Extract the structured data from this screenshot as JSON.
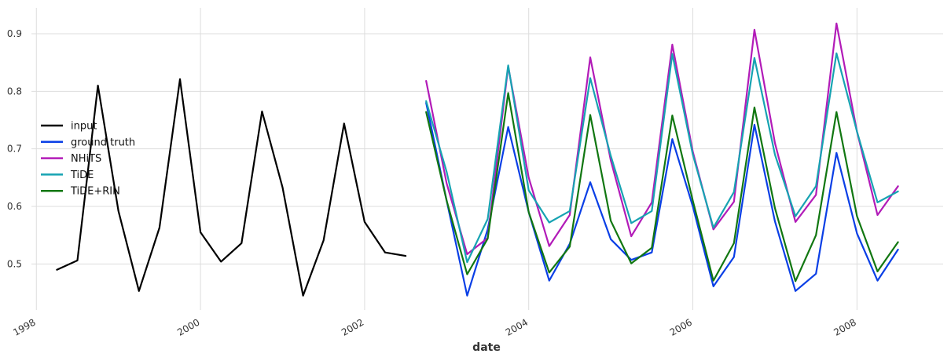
{
  "chart_data": {
    "type": "line",
    "xlabel": "date",
    "ylabel": "",
    "xlim": [
      1997.94,
      2009.05
    ],
    "ylim": [
      0.42,
      0.945
    ],
    "grid": true,
    "legend_placement": "center-left",
    "x_ticks": [
      {
        "value": 1998,
        "label": "1998"
      },
      {
        "value": 2000,
        "label": "2000"
      },
      {
        "value": 2002,
        "label": "2002"
      },
      {
        "value": 2004,
        "label": "2004"
      },
      {
        "value": 2006,
        "label": "2006"
      },
      {
        "value": 2008,
        "label": "2008"
      }
    ],
    "y_ticks": [
      {
        "value": 0.5,
        "label": "0.5"
      },
      {
        "value": 0.6,
        "label": "0.6"
      },
      {
        "value": 0.7,
        "label": "0.7"
      },
      {
        "value": 0.8,
        "label": "0.8"
      },
      {
        "value": 0.9,
        "label": "0.9"
      }
    ],
    "series": [
      {
        "name": "input",
        "color": "#000000",
        "x": [
          1998.25,
          1998.5,
          1998.75,
          1999.0,
          1999.25,
          1999.5,
          1999.75,
          2000.0,
          2000.25,
          2000.5,
          2000.75,
          2001.0,
          2001.25,
          2001.5,
          2001.75,
          2002.0,
          2002.25,
          2002.5
        ],
        "y": [
          0.49,
          0.506,
          0.81,
          0.592,
          0.453,
          0.563,
          0.821,
          0.555,
          0.504,
          0.536,
          0.765,
          0.633,
          0.445,
          0.541,
          0.744,
          0.573,
          0.52,
          0.514
        ]
      },
      {
        "name": "ground truth",
        "color": "#0a3fe6",
        "x": [
          2002.75,
          2003.0,
          2003.25,
          2003.5,
          2003.75,
          2004.0,
          2004.25,
          2004.5,
          2004.75,
          2005.0,
          2005.25,
          2005.5,
          2005.75,
          2006.0,
          2006.25,
          2006.5,
          2006.75,
          2007.0,
          2007.25,
          2007.5,
          2007.75,
          2008.0,
          2008.25,
          2008.5
        ],
        "y": [
          0.78,
          0.61,
          0.445,
          0.56,
          0.738,
          0.59,
          0.471,
          0.535,
          0.642,
          0.543,
          0.507,
          0.52,
          0.717,
          0.6,
          0.461,
          0.512,
          0.742,
          0.574,
          0.453,
          0.483,
          0.693,
          0.553,
          0.471,
          0.525
        ]
      },
      {
        "name": "NHiTS",
        "color": "#b21bb8",
        "x": [
          2002.75,
          2003.0,
          2003.25,
          2003.5,
          2003.75,
          2004.0,
          2004.25,
          2004.5,
          2004.75,
          2005.0,
          2005.25,
          2005.5,
          2005.75,
          2006.0,
          2006.25,
          2006.5,
          2006.75,
          2007.0,
          2007.25,
          2007.5,
          2007.75,
          2008.0,
          2008.25,
          2008.5
        ],
        "y": [
          0.818,
          0.64,
          0.517,
          0.545,
          0.843,
          0.65,
          0.531,
          0.585,
          0.859,
          0.68,
          0.548,
          0.607,
          0.881,
          0.695,
          0.56,
          0.608,
          0.907,
          0.71,
          0.573,
          0.62,
          0.918,
          0.73,
          0.585,
          0.635
        ]
      },
      {
        "name": "TiDE",
        "color": "#17a3b2",
        "x": [
          2002.75,
          2003.0,
          2003.25,
          2003.5,
          2003.75,
          2004.0,
          2004.25,
          2004.5,
          2004.75,
          2005.0,
          2005.25,
          2005.5,
          2005.75,
          2006.0,
          2006.25,
          2006.5,
          2006.75,
          2007.0,
          2007.25,
          2007.5,
          2007.75,
          2008.0,
          2008.25,
          2008.5
        ],
        "y": [
          0.783,
          0.66,
          0.503,
          0.578,
          0.845,
          0.628,
          0.572,
          0.592,
          0.823,
          0.688,
          0.571,
          0.592,
          0.865,
          0.69,
          0.563,
          0.625,
          0.858,
          0.69,
          0.583,
          0.635,
          0.866,
          0.73,
          0.607,
          0.626
        ]
      },
      {
        "name": "TiDE+RIN",
        "color": "#117711",
        "x": [
          2002.75,
          2003.0,
          2003.25,
          2003.5,
          2003.75,
          2004.0,
          2004.25,
          2004.5,
          2004.75,
          2005.0,
          2005.25,
          2005.5,
          2005.75,
          2006.0,
          2006.25,
          2006.5,
          2006.75,
          2007.0,
          2007.25,
          2007.5,
          2007.75,
          2008.0,
          2008.25,
          2008.5
        ],
        "y": [
          0.764,
          0.61,
          0.482,
          0.544,
          0.797,
          0.59,
          0.485,
          0.53,
          0.759,
          0.575,
          0.501,
          0.528,
          0.758,
          0.61,
          0.471,
          0.536,
          0.772,
          0.597,
          0.47,
          0.55,
          0.764,
          0.583,
          0.487,
          0.538
        ]
      }
    ]
  }
}
